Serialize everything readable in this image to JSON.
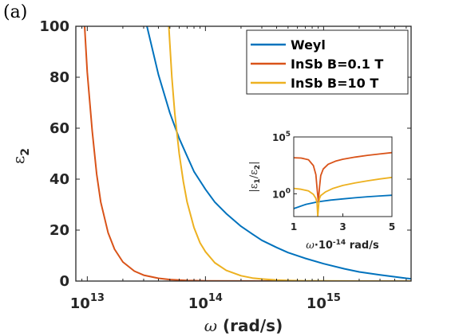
{
  "panel_label": "(a)",
  "chart_data": [
    {
      "type": "line",
      "xlabel_symbol": "ω",
      "xlabel_unit": " (rad/s)",
      "ylabel_base": "ε",
      "ylabel_sub": "2",
      "x_scale": "log",
      "xlim": [
        8000000000000.0,
        5500000000000000.0
      ],
      "ylim": [
        0,
        100
      ],
      "x_ticks": [
        10000000000000.0,
        100000000000000.0,
        1000000000000000.0
      ],
      "x_tick_base": "10",
      "x_tick_exps": [
        "13",
        "14",
        "15"
      ],
      "y_ticks": [
        0,
        20,
        40,
        60,
        80,
        100
      ],
      "y_tick_labels": [
        "0",
        "20",
        "40",
        "60",
        "80",
        "100"
      ],
      "legend_position": "top-right",
      "series": [
        {
          "name": "Weyl",
          "color": "#0072BD",
          "x": [
            32000000000000.0,
            40000000000000.0,
            50000000000000.0,
            60000000000000.0,
            70000000000000.0,
            80000000000000.0,
            100000000000000.0,
            120000000000000.0,
            150000000000000.0,
            200000000000000.0,
            250000000000000.0,
            300000000000000.0,
            400000000000000.0,
            500000000000000.0,
            700000000000000.0,
            1000000000000000.0,
            1500000000000000.0,
            2000000000000000.0,
            3000000000000000.0,
            5000000000000000.0,
            5500000000000000.0
          ],
          "y": [
            100,
            81,
            66,
            56,
            49,
            43,
            36,
            31,
            26.5,
            21.5,
            18.4,
            16,
            13.2,
            11.2,
            8.9,
            6.8,
            4.8,
            3.6,
            2.4,
            1.1,
            0.9
          ]
        },
        {
          "name": "InSb B=0.1 T",
          "color": "#D95319",
          "x": [
            9500000000000.0,
            10000000000000.0,
            11000000000000.0,
            12000000000000.0,
            13000000000000.0,
            15000000000000.0,
            17000000000000.0,
            20000000000000.0,
            25000000000000.0,
            30000000000000.0,
            40000000000000.0,
            50000000000000.0,
            70000000000000.0,
            100000000000000.0,
            200000000000000.0,
            500000000000000.0,
            1000000000000000.0,
            5500000000000000.0
          ],
          "y": [
            100,
            82,
            59,
            42,
            31,
            19,
            12.5,
            7.5,
            3.9,
            2.3,
            1.1,
            0.6,
            0.25,
            0.1,
            0.02,
            0,
            0,
            0
          ]
        },
        {
          "name": "InSb B=10 T",
          "color": "#EDB120",
          "x": [
            49000000000000.0,
            50000000000000.0,
            52000000000000.0,
            55000000000000.0,
            60000000000000.0,
            65000000000000.0,
            70000000000000.0,
            80000000000000.0,
            90000000000000.0,
            100000000000000.0,
            120000000000000.0,
            150000000000000.0,
            200000000000000.0,
            250000000000000.0,
            300000000000000.0,
            400000000000000.0,
            500000000000000.0,
            700000000000000.0,
            1000000000000000.0,
            2000000000000000.0,
            5500000000000000.0
          ],
          "y": [
            100,
            93,
            80,
            66,
            50,
            39,
            31,
            21,
            15,
            11.5,
            7.2,
            4.2,
            2.1,
            1.2,
            0.8,
            0.4,
            0.25,
            0.1,
            0.05,
            0.01,
            0
          ]
        }
      ]
    },
    {
      "type": "line",
      "xlabel_symbol": "ω",
      "xlabel_rest": "·10",
      "xlabel_exp": "-14",
      "xlabel_unit": " rad/s",
      "ylabel_open": "|ε",
      "ylabel_sub1": "1",
      "ylabel_mid": "/ε",
      "ylabel_sub2": "2",
      "ylabel_close": "|",
      "y_scale": "log",
      "xlim": [
        1,
        5
      ],
      "ylim": [
        0.01,
        100000
      ],
      "x_ticks": [
        1,
        3,
        5
      ],
      "x_tick_labels": [
        "1",
        "3",
        "5"
      ],
      "y_ticks": [
        1,
        100000
      ],
      "y_tick_base": "10",
      "y_tick_exps": [
        "0",
        "5"
      ],
      "series": [
        {
          "name": "Weyl",
          "color": "#0072BD",
          "x": [
            1.0,
            1.5,
            2.0,
            2.5,
            3.0,
            3.5,
            4.0,
            4.5,
            5.0
          ],
          "y": [
            0.05,
            0.12,
            0.2,
            0.28,
            0.36,
            0.45,
            0.55,
            0.65,
            0.75
          ]
        },
        {
          "name": "InSb B=0.1 T",
          "color": "#D95319",
          "x": [
            1.0,
            1.3,
            1.6,
            1.8,
            1.9,
            1.95,
            2.0,
            2.05,
            2.1,
            2.2,
            2.4,
            2.7,
            3.0,
            3.5,
            4.0,
            4.5,
            5.0
          ],
          "y": [
            1500,
            1400,
            1000,
            300,
            50,
            3,
            0.2,
            4,
            40,
            150,
            400,
            750,
            1100,
            1700,
            2400,
            3200,
            4200
          ]
        },
        {
          "name": "InSb B=10 T",
          "color": "#EDB120",
          "x": [
            1.0,
            1.3,
            1.6,
            1.8,
            1.9,
            1.95,
            1.98,
            2.02,
            2.05,
            2.1,
            2.3,
            2.6,
            3.0,
            3.5,
            4.0,
            4.5,
            5.0
          ],
          "y": [
            3,
            2.5,
            1.8,
            0.9,
            0.4,
            0.15,
            0.01,
            0.15,
            0.4,
            0.7,
            1.5,
            3,
            5.5,
            9,
            14,
            20,
            28
          ]
        }
      ]
    }
  ]
}
